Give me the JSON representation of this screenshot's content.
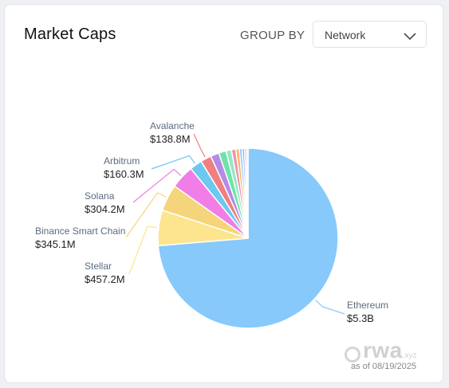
{
  "header": {
    "title": "Market Caps",
    "group_by_label": "GROUP BY",
    "group_by_value": "Network"
  },
  "footer": {
    "as_of": "as of 08/19/2025"
  },
  "watermark": {
    "logo": "rwa",
    "suffix": ".xyz"
  },
  "chart_data": {
    "type": "pie",
    "title": "",
    "slices": [
      {
        "name": "Ethereum",
        "label": "$5.3B",
        "value": 5300,
        "color": "#87c9fb"
      },
      {
        "name": "Stellar",
        "label": "$457.2M",
        "value": 457.2,
        "color": "#fde58e"
      },
      {
        "name": "Binance Smart Chain",
        "label": "$345.1M",
        "value": 345.1,
        "color": "#f5d57b"
      },
      {
        "name": "Solana",
        "label": "$304.2M",
        "value": 304.2,
        "color": "#f07ee6"
      },
      {
        "name": "Arbitrum",
        "label": "$160.3M",
        "value": 160.3,
        "color": "#6bc8f0"
      },
      {
        "name": "Avalanche",
        "label": "$138.8M",
        "value": 138.8,
        "color": "#ef7f80"
      },
      {
        "name": "",
        "label": "",
        "value": 110,
        "color": "#b58be6"
      },
      {
        "name": "",
        "label": "",
        "value": 95,
        "color": "#6ee3a8"
      },
      {
        "name": "",
        "label": "",
        "value": 70,
        "color": "#93e9c4"
      },
      {
        "name": "",
        "label": "",
        "value": 55,
        "color": "#f48fa8"
      },
      {
        "name": "",
        "label": "",
        "value": 45,
        "color": "#ffb26b"
      },
      {
        "name": "",
        "label": "",
        "value": 38,
        "color": "#8fd2ff"
      },
      {
        "name": "",
        "label": "",
        "value": 30,
        "color": "#a3a8f7"
      },
      {
        "name": "",
        "label": "",
        "value": 25,
        "color": "#c9b0ee"
      },
      {
        "name": "",
        "label": "",
        "value": 20,
        "color": "#d7d0f3"
      }
    ]
  }
}
